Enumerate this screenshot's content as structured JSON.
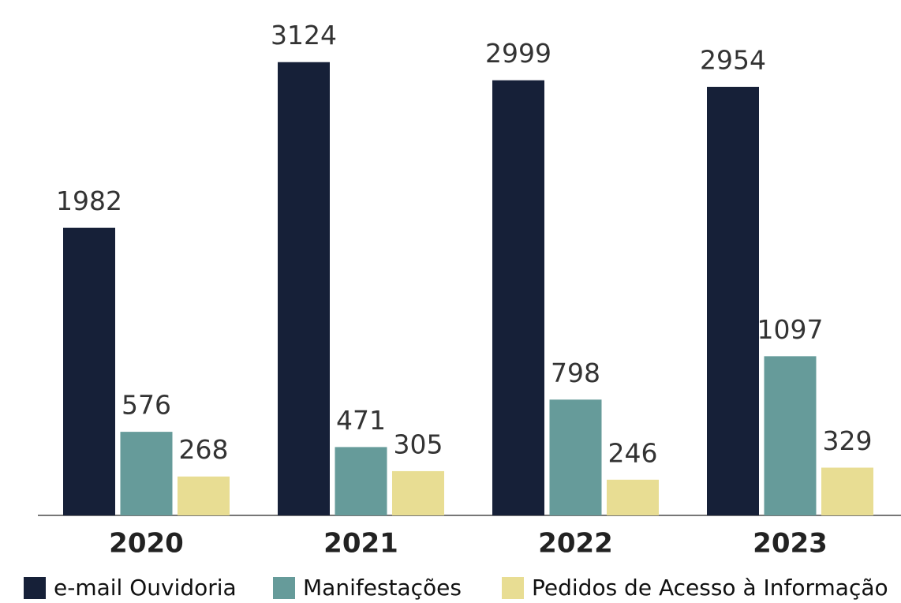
{
  "chart_data": {
    "type": "bar",
    "categories": [
      "2020",
      "2021",
      "2022",
      "2023"
    ],
    "series": [
      {
        "name": "e-mail Ouvidoria",
        "color": "#162038",
        "values": [
          1982,
          3124,
          2999,
          2954
        ]
      },
      {
        "name": "Manifestações",
        "color": "#669b9a",
        "values": [
          576,
          471,
          798,
          1097
        ]
      },
      {
        "name": "Pedidos de Acesso à Informação",
        "color": "#e8dd93",
        "values": [
          268,
          305,
          246,
          329
        ]
      }
    ],
    "ylim": [
      0,
      3400
    ]
  }
}
